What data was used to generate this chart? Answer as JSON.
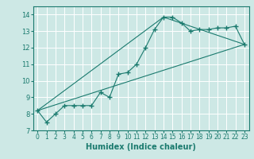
{
  "xlabel": "Humidex (Indice chaleur)",
  "background_color": "#cde8e5",
  "grid_color": "#ffffff",
  "line_color": "#1a7a6e",
  "xlim": [
    -0.5,
    23.5
  ],
  "ylim": [
    7,
    14.5
  ],
  "yticks": [
    7,
    8,
    9,
    10,
    11,
    12,
    13,
    14
  ],
  "xticks": [
    0,
    1,
    2,
    3,
    4,
    5,
    6,
    7,
    8,
    9,
    10,
    11,
    12,
    13,
    14,
    15,
    16,
    17,
    18,
    19,
    20,
    21,
    22,
    23
  ],
  "series1_x": [
    0,
    1,
    2,
    3,
    4,
    5,
    6,
    7,
    8,
    9,
    10,
    11,
    12,
    13,
    14,
    15,
    16,
    17,
    18,
    19,
    20,
    21,
    22,
    23
  ],
  "series1_y": [
    8.2,
    7.5,
    8.0,
    8.5,
    8.5,
    8.5,
    8.5,
    9.3,
    9.0,
    10.4,
    10.5,
    11.0,
    12.0,
    13.1,
    13.85,
    13.85,
    13.5,
    13.0,
    13.1,
    13.1,
    13.2,
    13.2,
    13.3,
    12.2
  ],
  "series2_x": [
    0,
    23
  ],
  "series2_y": [
    8.2,
    12.2
  ],
  "series3_x": [
    0,
    14,
    23
  ],
  "series3_y": [
    8.2,
    13.85,
    12.2
  ]
}
